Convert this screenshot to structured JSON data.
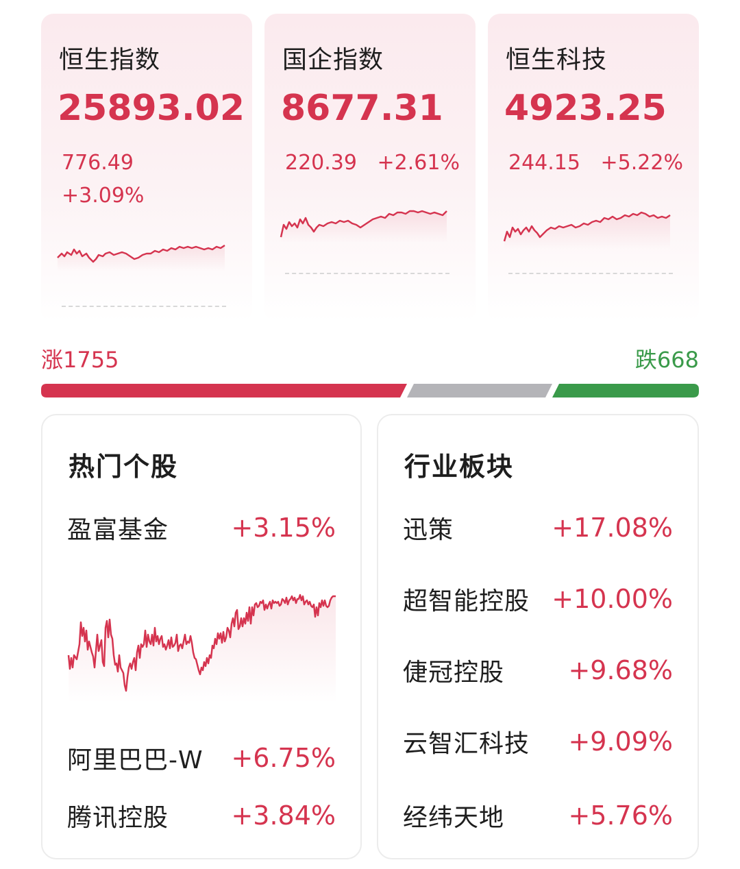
{
  "indices": [
    {
      "name": "恒生指数",
      "value": "25893.02",
      "change": "776.49",
      "change_pct": "+3.09%"
    },
    {
      "name": "国企指数",
      "value": "8677.31",
      "change": "220.39",
      "change_pct": "+2.61%"
    },
    {
      "name": "恒生科技",
      "value": "4923.25",
      "change": "244.15",
      "change_pct": "+5.22%"
    }
  ],
  "breadth": {
    "rise_label": "涨1755",
    "fall_label": "跌668",
    "rise_count": 1755,
    "fall_count": 668
  },
  "hot_stocks": {
    "title": "热门个股",
    "items": [
      {
        "name": "盈富基金",
        "pct": "+3.15%"
      },
      {
        "name": "阿里巴巴-W",
        "pct": "+6.75%"
      },
      {
        "name": "腾讯控股",
        "pct": "+3.84%"
      }
    ]
  },
  "sectors": {
    "title": "行业板块",
    "items": [
      {
        "name": "迅策",
        "pct": "+17.08%"
      },
      {
        "name": "超智能控股",
        "pct": "+10.00%"
      },
      {
        "name": "倢冠控股",
        "pct": "+9.68%"
      },
      {
        "name": "云智汇科技",
        "pct": "+9.09%"
      },
      {
        "name": "经纬天地",
        "pct": "+5.76%"
      }
    ]
  },
  "colors": {
    "up": "#d5344f",
    "down": "#3a9a4a",
    "flat": "#b4b4b8",
    "text": "#1e1e1e"
  }
}
